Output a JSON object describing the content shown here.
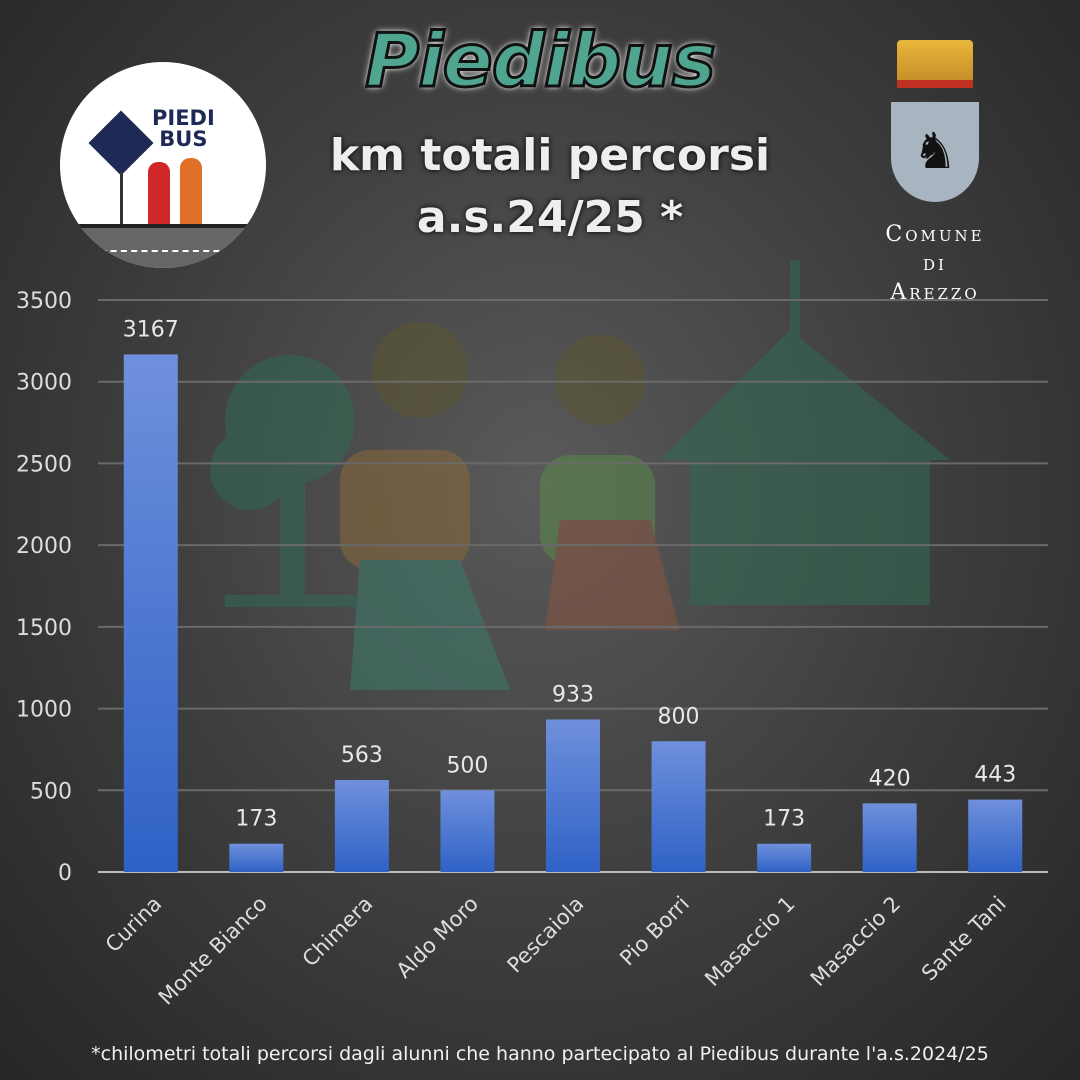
{
  "header": {
    "title": "Piedibus",
    "subtitle_line1": "km totali percorsi",
    "subtitle_line2": "a.s.24/25 *"
  },
  "logo_left": {
    "text_line1": "PIEDI",
    "text_line2": "BUS"
  },
  "logo_right": {
    "line1": "Comune",
    "line2": "di",
    "line3": "Arezzo"
  },
  "footnote": "*chilometri totali percorsi dagli alunni che hanno partecipato al Piedibus durante l'a.s.2024/25",
  "chart_data": {
    "type": "bar",
    "categories": [
      "Curina",
      "Monte Bianco",
      "Chimera",
      "Aldo Moro",
      "Pescaiola",
      "Pio Borri",
      "Masaccio 1",
      "Masaccio 2",
      "Sante Tani"
    ],
    "values": [
      3167,
      173,
      563,
      500,
      933,
      800,
      173,
      420,
      443
    ],
    "data_labels": [
      "3167",
      "173",
      "563",
      "500",
      "933",
      "800",
      "173",
      "420",
      "443"
    ],
    "title": "",
    "xlabel": "",
    "ylabel": "",
    "ylim": [
      0,
      3500
    ],
    "yticks": [
      "0",
      "500",
      "1000",
      "1500",
      "2000",
      "2500",
      "3000",
      "3500"
    ],
    "grid": true,
    "bar_color": "#4a78d4"
  }
}
